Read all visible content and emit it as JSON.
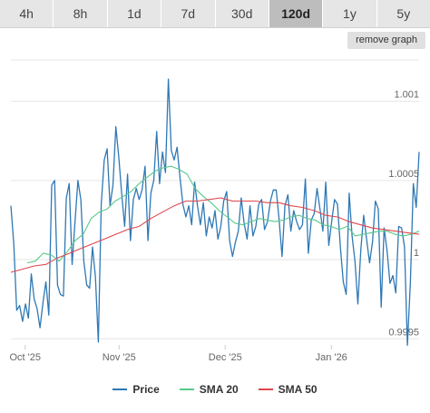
{
  "toolbar": {
    "tabs": [
      {
        "label": "4h"
      },
      {
        "label": "8h"
      },
      {
        "label": "1d"
      },
      {
        "label": "7d"
      },
      {
        "label": "30d"
      },
      {
        "label": "120d"
      },
      {
        "label": "1y"
      },
      {
        "label": "5y"
      }
    ],
    "active_tab": "120d",
    "remove_label": "remove graph"
  },
  "colors": {
    "price": "#2f78b5",
    "sma20": "#58c98a",
    "sma50": "#e0474c",
    "grid": "#e6e6e6"
  },
  "chart_data": {
    "type": "line",
    "x_ticks": [
      "Oct '25",
      "Nov '25",
      "Dec '25",
      "Jan '26"
    ],
    "y_ticks": [
      "1.001",
      "1.0005",
      "1",
      "0.9995"
    ],
    "ylim": [
      0.99945,
      1.00125
    ],
    "grid": true,
    "legend_position": "bottom",
    "series": [
      {
        "name": "Price",
        "values": [
          1.00034,
          1.0001,
          0.99968,
          0.99971,
          0.99961,
          0.99972,
          0.99963,
          0.99991,
          0.99975,
          0.99969,
          0.99957,
          0.99973,
          0.99986,
          0.99965,
          1.00047,
          1.0005,
          0.99984,
          0.99978,
          0.99977,
          1.00039,
          1.00048,
          0.99997,
          1.00024,
          1.0005,
          1.00038,
          0.99999,
          0.99984,
          0.99982,
          1.00008,
          0.99989,
          0.99948,
          1.00035,
          1.00063,
          1.0007,
          1.00034,
          1.00047,
          1.00084,
          1.00065,
          1.00042,
          1.00021,
          1.00054,
          1.00012,
          1.00038,
          1.00045,
          1.00038,
          1.00044,
          1.00059,
          1.00012,
          1.00042,
          1.0005,
          1.00081,
          1.00048,
          1.00068,
          1.00055,
          1.00114,
          1.00069,
          1.00063,
          1.00071,
          1.00052,
          1.00035,
          1.00027,
          1.00034,
          1.00022,
          1.00049,
          1.00034,
          1.00022,
          1.00036,
          1.00015,
          1.00027,
          1.0002,
          1.00031,
          1.00013,
          1.00021,
          1.00037,
          1.00043,
          1.00012,
          1.00002,
          1.00011,
          1.00018,
          1.00039,
          1.00023,
          1.00013,
          1.00034,
          1.00015,
          1.00021,
          1.00035,
          1.00038,
          1.00019,
          1.00024,
          1.00037,
          1.00044,
          1.00044,
          1.00025,
          1.00002,
          1.00034,
          1.00041,
          1.00018,
          1.00031,
          1.00024,
          1.00019,
          1.00022,
          1.00051,
          1.00004,
          1.00025,
          1.00029,
          1.00045,
          1.00032,
          1.00018,
          1.00049,
          1.00009,
          1.00024,
          1.00038,
          1.00035,
          1.00008,
          0.99986,
          0.99978,
          1.00042,
          1.00015,
          0.99999,
          0.99972,
          1.00006,
          1.00028,
          1.00013,
          0.99998,
          1.00011,
          1.00037,
          1.00032,
          0.9997,
          1.0002,
          1.00006,
          0.99985,
          0.9999,
          0.99979,
          1.00021,
          1.0002,
          1.00008,
          0.99946,
          0.99986,
          1.00048,
          1.00033,
          1.00068
        ]
      },
      {
        "name": "SMA 20",
        "values": [
          0.99998,
          0.99999,
          1.00004,
          1.00003,
          0.99999,
          1.00005,
          1.00012,
          1.00016,
          1.00026,
          1.0003,
          1.00032,
          1.00037,
          1.0004,
          1.00043,
          1.00048,
          1.00052,
          1.00056,
          1.00058,
          1.00059,
          1.00057,
          1.00054,
          1.00045,
          1.0004,
          1.00036,
          1.00031,
          1.00027,
          1.00023,
          1.00022,
          1.00024,
          1.00026,
          1.00025,
          1.00024,
          1.00025,
          1.00027,
          1.00028,
          1.00026,
          1.00025,
          1.00022,
          1.00021,
          1.00019,
          1.00021,
          1.00015,
          1.00016,
          1.00017,
          1.00018,
          1.00018,
          1.00016,
          1.00015,
          1.00016,
          1.00018
        ]
      },
      {
        "name": "SMA 50",
        "values": [
          0.99992,
          0.99994,
          0.99996,
          0.99997,
          1.00001,
          1.00004,
          1.00007,
          1.0001,
          1.00013,
          1.00016,
          1.00019,
          1.00021,
          1.00026,
          1.0003,
          1.00034,
          1.00037,
          1.00037,
          1.00038,
          1.00039,
          1.00037,
          1.00037,
          1.00037,
          1.00036,
          1.00036,
          1.00034,
          1.00033,
          1.00031,
          1.00028,
          1.00027,
          1.00024,
          1.00022,
          1.0002,
          1.00019,
          1.00018,
          1.00017,
          1.00016
        ]
      }
    ]
  }
}
